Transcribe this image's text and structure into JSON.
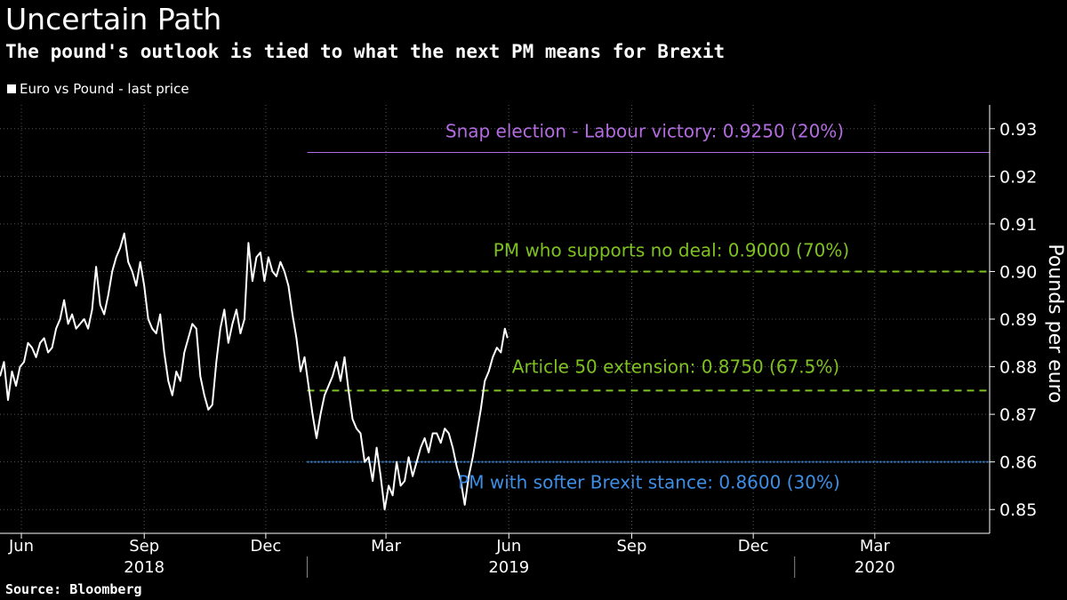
{
  "title": "Uncertain Path",
  "subtitle": "The pound's outlook is tied to what the next PM means for Brexit",
  "source": "Source: Bloomberg",
  "colors": {
    "background": "#000000",
    "series": "#ffffff",
    "grid": "#555555",
    "labour": "#b36be0",
    "no_deal": "#7fc21f",
    "article50": "#7fc21f",
    "softer": "#3d8ee6"
  },
  "chart_data": {
    "type": "line",
    "title": "Uncertain Path",
    "subtitle": "The pound's outlook is tied to what the next PM means for Brexit",
    "ylabel": "Pounds per euro",
    "xlabel": "",
    "ylim": [
      0.845,
      0.935
    ],
    "xlim": [
      "2018-05-16",
      "2020-05-26"
    ],
    "y_ticks": [
      "0.85",
      "0.86",
      "0.87",
      "0.88",
      "0.89",
      "0.90",
      "0.91",
      "0.92",
      "0.93"
    ],
    "x_month_ticks": [
      {
        "label": "Jun",
        "date": "2018-06-01"
      },
      {
        "label": "Sep",
        "date": "2018-09-01"
      },
      {
        "label": "Dec",
        "date": "2018-12-01"
      },
      {
        "label": "Mar",
        "date": "2019-03-01"
      },
      {
        "label": "Jun",
        "date": "2019-06-01"
      },
      {
        "label": "Sep",
        "date": "2019-09-01"
      },
      {
        "label": "Dec",
        "date": "2019-12-01"
      },
      {
        "label": "Mar",
        "date": "2020-03-01"
      }
    ],
    "x_year_labels": [
      {
        "label": "2018",
        "date": "2018-09-01"
      },
      {
        "label": "2019",
        "date": "2019-06-01"
      },
      {
        "label": "2020",
        "date": "2020-03-01"
      }
    ],
    "year_separators": [
      "2019-01-01",
      "2020-01-01"
    ],
    "grid": true,
    "legend": {
      "position": "top-left",
      "entries": [
        "Euro vs Pound - last price"
      ]
    },
    "series": [
      {
        "name": "Euro vs Pound - last price",
        "x": [
          "2018-05-16",
          "2018-05-19",
          "2018-05-22",
          "2018-05-25",
          "2018-05-28",
          "2018-05-31",
          "2018-06-03",
          "2018-06-06",
          "2018-06-09",
          "2018-06-12",
          "2018-06-15",
          "2018-06-18",
          "2018-06-21",
          "2018-06-24",
          "2018-06-27",
          "2018-06-30",
          "2018-07-03",
          "2018-07-06",
          "2018-07-09",
          "2018-07-12",
          "2018-07-15",
          "2018-07-18",
          "2018-07-21",
          "2018-07-24",
          "2018-07-27",
          "2018-07-30",
          "2018-08-02",
          "2018-08-05",
          "2018-08-08",
          "2018-08-11",
          "2018-08-14",
          "2018-08-17",
          "2018-08-20",
          "2018-08-23",
          "2018-08-26",
          "2018-08-29",
          "2018-09-01",
          "2018-09-04",
          "2018-09-07",
          "2018-09-10",
          "2018-09-13",
          "2018-09-16",
          "2018-09-19",
          "2018-09-22",
          "2018-09-25",
          "2018-09-28",
          "2018-10-01",
          "2018-10-04",
          "2018-10-07",
          "2018-10-10",
          "2018-10-13",
          "2018-10-16",
          "2018-10-19",
          "2018-10-22",
          "2018-10-25",
          "2018-10-28",
          "2018-10-31",
          "2018-11-03",
          "2018-11-06",
          "2018-11-09",
          "2018-11-12",
          "2018-11-15",
          "2018-11-18",
          "2018-11-21",
          "2018-11-24",
          "2018-11-27",
          "2018-11-30",
          "2018-12-03",
          "2018-12-06",
          "2018-12-09",
          "2018-12-12",
          "2018-12-15",
          "2018-12-18",
          "2018-12-21",
          "2018-12-24",
          "2018-12-27",
          "2018-12-30",
          "2019-01-02",
          "2019-01-05",
          "2019-01-08",
          "2019-01-11",
          "2019-01-14",
          "2019-01-17",
          "2019-01-20",
          "2019-01-23",
          "2019-01-26",
          "2019-01-29",
          "2019-02-01",
          "2019-02-04",
          "2019-02-07",
          "2019-02-10",
          "2019-02-13",
          "2019-02-16",
          "2019-02-19",
          "2019-02-22",
          "2019-02-25",
          "2019-02-28",
          "2019-03-03",
          "2019-03-06",
          "2019-03-09",
          "2019-03-12",
          "2019-03-15",
          "2019-03-18",
          "2019-03-21",
          "2019-03-24",
          "2019-03-27",
          "2019-03-30",
          "2019-04-02",
          "2019-04-05",
          "2019-04-08",
          "2019-04-11",
          "2019-04-14",
          "2019-04-17",
          "2019-04-20",
          "2019-04-23",
          "2019-04-26",
          "2019-04-29",
          "2019-05-02",
          "2019-05-05",
          "2019-05-08",
          "2019-05-11",
          "2019-05-14",
          "2019-05-17",
          "2019-05-20",
          "2019-05-23",
          "2019-05-26",
          "2019-05-29",
          "2019-05-31"
        ],
        "values": [
          0.878,
          0.881,
          0.873,
          0.879,
          0.876,
          0.88,
          0.881,
          0.885,
          0.884,
          0.882,
          0.885,
          0.886,
          0.883,
          0.884,
          0.888,
          0.89,
          0.894,
          0.889,
          0.891,
          0.888,
          0.889,
          0.89,
          0.888,
          0.892,
          0.901,
          0.893,
          0.891,
          0.895,
          0.9,
          0.903,
          0.905,
          0.908,
          0.902,
          0.9,
          0.897,
          0.902,
          0.897,
          0.89,
          0.888,
          0.887,
          0.891,
          0.883,
          0.877,
          0.874,
          0.879,
          0.877,
          0.883,
          0.886,
          0.889,
          0.888,
          0.878,
          0.874,
          0.871,
          0.872,
          0.881,
          0.888,
          0.892,
          0.885,
          0.889,
          0.892,
          0.887,
          0.89,
          0.906,
          0.898,
          0.903,
          0.904,
          0.898,
          0.903,
          0.9,
          0.899,
          0.902,
          0.9,
          0.897,
          0.891,
          0.886,
          0.879,
          0.882,
          0.876,
          0.87,
          0.865,
          0.87,
          0.874,
          0.876,
          0.878,
          0.881,
          0.877,
          0.882,
          0.875,
          0.869,
          0.867,
          0.866,
          0.86,
          0.861,
          0.856,
          0.863,
          0.857,
          0.85,
          0.855,
          0.853,
          0.86,
          0.855,
          0.856,
          0.861,
          0.857,
          0.86,
          0.863,
          0.865,
          0.862,
          0.866,
          0.866,
          0.864,
          0.867,
          0.866,
          0.863,
          0.859,
          0.856,
          0.851,
          0.857,
          0.861,
          0.866,
          0.871,
          0.877,
          0.879,
          0.882,
          0.884,
          0.883,
          0.888,
          0.886
        ]
      }
    ],
    "reference_lines": [
      {
        "key": "labour",
        "label": "Snap election - Labour victory: 0.9250 (20%)",
        "y": 0.925,
        "x_start": "2019-01-01",
        "x_end": "2020-05-26",
        "style": "solid",
        "color": "#b36be0"
      },
      {
        "key": "no_deal",
        "label": "PM who supports no deal: 0.9000 (70%)",
        "y": 0.9,
        "x_start": "2019-01-01",
        "x_end": "2020-05-26",
        "style": "dashed",
        "color": "#7fc21f"
      },
      {
        "key": "article50",
        "label": "Article 50 extension: 0.8750 (67.5%)",
        "y": 0.875,
        "x_start": "2019-01-01",
        "x_end": "2020-05-26",
        "style": "dashed",
        "color": "#7fc21f"
      },
      {
        "key": "softer",
        "label": "PM with softer Brexit stance: 0.8600 (30%)",
        "y": 0.86,
        "x_start": "2019-01-01",
        "x_end": "2020-05-26",
        "style": "dotted",
        "color": "#3d8ee6"
      }
    ]
  }
}
